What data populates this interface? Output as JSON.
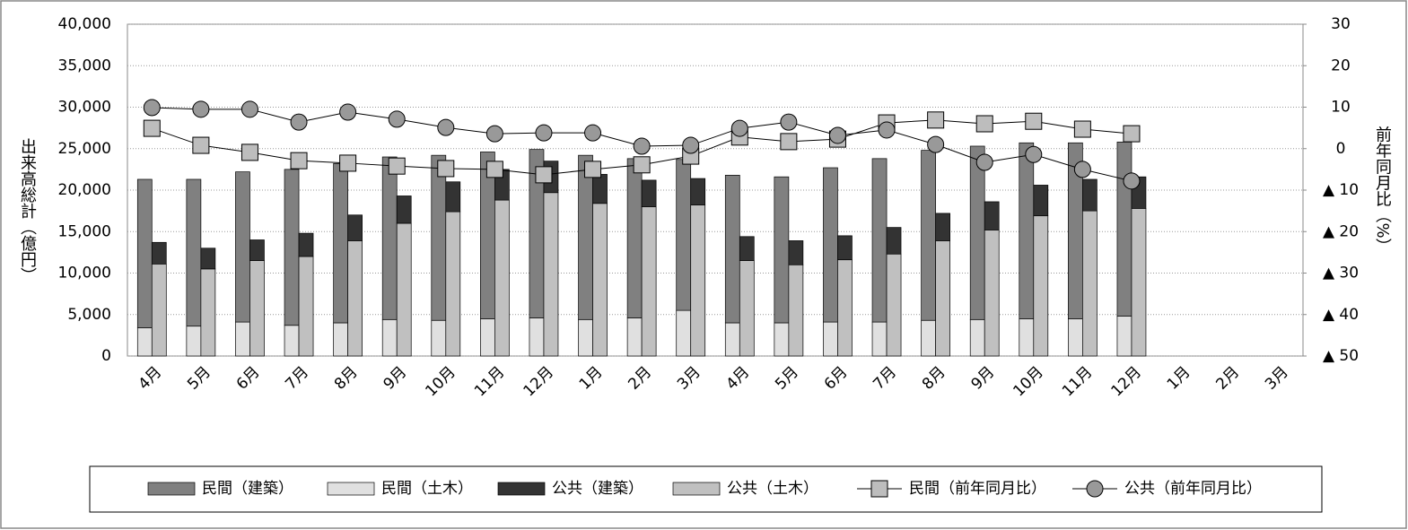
{
  "chart_data": {
    "type": "bar",
    "y_label": "出来高総計（億円）",
    "y2_label": "前年同月比（%）",
    "categories": [
      "4月",
      "5月",
      "6月",
      "7月",
      "8月",
      "9月",
      "10月",
      "11月",
      "12月",
      "1月",
      "2月",
      "3月",
      "4月",
      "5月",
      "6月",
      "7月",
      "8月",
      "9月",
      "10月",
      "11月",
      "12月",
      "1月",
      "2月",
      "3月"
    ],
    "ylim": [
      0,
      40000
    ],
    "yticks": [
      0,
      {
        "value": 5000,
        "label": "5,000"
      },
      {
        "value": 10000,
        "label": "10,000"
      },
      {
        "value": 15000,
        "label": "15,000"
      },
      {
        "value": 20000,
        "label": "20,000"
      },
      {
        "value": 25000,
        "label": "25,000"
      },
      {
        "value": 30000,
        "label": "30,000"
      },
      {
        "value": 35000,
        "label": "35,000"
      },
      {
        "value": 40000,
        "label": "40,000"
      }
    ],
    "y2lim": [
      -50,
      30
    ],
    "y2ticks": [
      {
        "value": -50,
        "label": "▲ 50"
      },
      {
        "value": -40,
        "label": "▲ 40"
      },
      {
        "value": -30,
        "label": "▲ 30"
      },
      {
        "value": -20,
        "label": "▲ 20"
      },
      {
        "value": -10,
        "label": "▲ 10"
      },
      0,
      10,
      20,
      30
    ],
    "grid": true,
    "legend": "bottom",
    "series": [
      {
        "name": "民間（建築）",
        "type": "bar",
        "stack": "private",
        "color": "#808080",
        "values": [
          17900,
          17700,
          18100,
          18800,
          19200,
          19600,
          19900,
          20100,
          20300,
          19800,
          19200,
          18200,
          17800,
          17600,
          18600,
          19700,
          20500,
          20900,
          21200,
          21200,
          21000,
          null,
          null,
          null
        ]
      },
      {
        "name": "民間（土木）",
        "type": "bar",
        "stack": "private",
        "color": "#e0e0e0",
        "values": [
          3400,
          3600,
          4100,
          3700,
          4000,
          4400,
          4300,
          4500,
          4600,
          4400,
          4600,
          5500,
          4000,
          4000,
          4100,
          4100,
          4300,
          4400,
          4500,
          4500,
          4800,
          null,
          null,
          null
        ]
      },
      {
        "name": "公共（建築）",
        "type": "bar",
        "stack": "public",
        "color": "#333333",
        "values": [
          2600,
          2500,
          2500,
          2800,
          3100,
          3300,
          3600,
          3700,
          3800,
          3500,
          3200,
          3200,
          2900,
          2900,
          2900,
          3200,
          3300,
          3400,
          3700,
          3800,
          3800,
          null,
          null,
          null
        ]
      },
      {
        "name": "公共（土木）",
        "type": "bar",
        "stack": "public",
        "color": "#c0c0c0",
        "values": [
          11100,
          10500,
          11500,
          12000,
          13900,
          16000,
          17400,
          18800,
          19700,
          18400,
          18000,
          18200,
          11500,
          11000,
          11600,
          12300,
          13900,
          15200,
          16900,
          17500,
          17800,
          null,
          null,
          null
        ]
      },
      {
        "name": "民間（前年同月比）",
        "type": "line",
        "marker": "square",
        "axis": "y2",
        "color": "#bdbdbd",
        "values": [
          4.9,
          0.8,
          -0.9,
          -2.9,
          -3.5,
          -4.2,
          -4.8,
          -5.0,
          -6.3,
          -5.0,
          -3.9,
          -1.8,
          2.8,
          1.7,
          2.3,
          6.2,
          6.9,
          6.0,
          6.6,
          4.7,
          3.6,
          null,
          null,
          null
        ]
      },
      {
        "name": "公共（前年同月比）",
        "type": "line",
        "marker": "circle",
        "axis": "y2",
        "color": "#999999",
        "values": [
          9.9,
          9.5,
          9.5,
          6.4,
          8.8,
          7.1,
          5.1,
          3.6,
          3.8,
          3.8,
          0.6,
          0.8,
          4.9,
          6.4,
          3.2,
          4.5,
          1.0,
          -3.3,
          -1.4,
          -5.0,
          -7.8,
          null,
          null,
          null
        ]
      }
    ]
  }
}
